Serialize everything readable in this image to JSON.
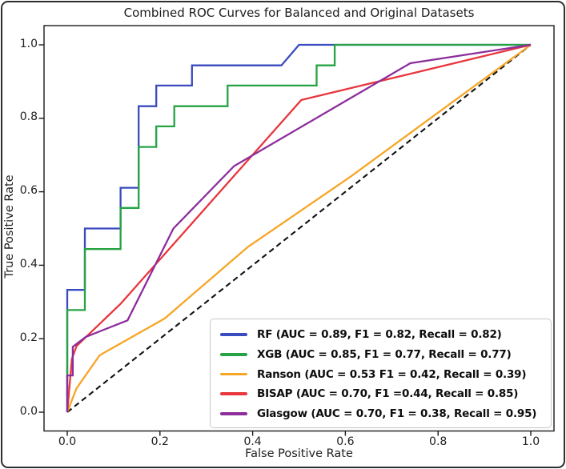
{
  "figure": {
    "title": "Combined ROC Curves for Balanced and Original Datasets",
    "xlabel": "False Positive Rate",
    "ylabel": "True Positive Rate"
  },
  "axes": {
    "x_tick_labels": [
      "0.0",
      "0.2",
      "0.4",
      "0.6",
      "0.8",
      "1.0"
    ],
    "y_tick_labels": [
      "0.0",
      "0.2",
      "0.4",
      "0.6",
      "0.8",
      "1.0"
    ],
    "x_tick_values": [
      0,
      0.2,
      0.4,
      0.6,
      0.8,
      1.0
    ],
    "y_tick_values": [
      0,
      0.2,
      0.4,
      0.6,
      0.8,
      1.0
    ]
  },
  "colors": {
    "rf_blue": "#3a4bbf",
    "xgb_green": "#26a344",
    "ranson_orange": "#f7a525",
    "bisap_red": "#e8363d",
    "glasgow_purple": "#8c2d9c",
    "chance_black": "#111111",
    "spine": "#1a1a1a",
    "legend_border": "#c7c7c7"
  },
  "legend": {
    "position": "lower right",
    "entries": [
      {
        "series": "RF",
        "label": "RF (AUC = 0.89, F1 = 0.82, Recall = 0.82)",
        "color": "#3a4bbf"
      },
      {
        "series": "XGB",
        "label": "XGB (AUC = 0.85, F1 = 0.77, Recall = 0.77)",
        "color": "#26a344"
      },
      {
        "series": "Ranson",
        "label": "Ranson (AUC = 0.53 F1 = 0.42, Recall = 0.39)",
        "color": "#f7a525"
      },
      {
        "series": "BISAP",
        "label": "BISAP (AUC = 0.70, F1 =0.44, Recall = 0.85)",
        "color": "#e8363d"
      },
      {
        "series": "Glasgow",
        "label": "Glasgow (AUC = 0.70, F1 = 0.38, Recall = 0.95)",
        "color": "#8c2d9c"
      }
    ]
  },
  "chart_data": {
    "type": "line",
    "title": "Combined ROC Curves for Balanced and Original Datasets",
    "xlabel": "False Positive Rate",
    "ylabel": "True Positive Rate",
    "xlim": [
      -0.05,
      1.05
    ],
    "ylim": [
      -0.05,
      1.05
    ],
    "grid": false,
    "legend_position": "lower right",
    "series": [
      {
        "name": "RF",
        "auc": 0.89,
        "f1": 0.82,
        "recall": 0.82,
        "color": "#3a4bbf",
        "style": "solid",
        "points": [
          [
            0,
            0
          ],
          [
            0,
            0.333
          ],
          [
            0.038,
            0.333
          ],
          [
            0.038,
            0.5
          ],
          [
            0.115,
            0.5
          ],
          [
            0.115,
            0.611
          ],
          [
            0.154,
            0.611
          ],
          [
            0.154,
            0.833
          ],
          [
            0.192,
            0.833
          ],
          [
            0.192,
            0.889
          ],
          [
            0.269,
            0.889
          ],
          [
            0.269,
            0.944
          ],
          [
            0.462,
            0.944
          ],
          [
            0.5,
            1
          ],
          [
            1,
            1
          ]
        ]
      },
      {
        "name": "XGB",
        "auc": 0.85,
        "f1": 0.77,
        "recall": 0.77,
        "color": "#26a344",
        "style": "solid",
        "points": [
          [
            0,
            0
          ],
          [
            0,
            0.278
          ],
          [
            0.038,
            0.278
          ],
          [
            0.038,
            0.444
          ],
          [
            0.115,
            0.444
          ],
          [
            0.115,
            0.556
          ],
          [
            0.154,
            0.556
          ],
          [
            0.154,
            0.722
          ],
          [
            0.192,
            0.722
          ],
          [
            0.192,
            0.778
          ],
          [
            0.231,
            0.778
          ],
          [
            0.231,
            0.833
          ],
          [
            0.346,
            0.833
          ],
          [
            0.346,
            0.889
          ],
          [
            0.538,
            0.889
          ],
          [
            0.538,
            0.944
          ],
          [
            0.577,
            0.944
          ],
          [
            0.577,
            1
          ],
          [
            1,
            1
          ]
        ]
      },
      {
        "name": "Ranson",
        "auc": 0.53,
        "f1": 0.42,
        "recall": 0.39,
        "color": "#f7a525",
        "style": "solid",
        "points": [
          [
            0,
            0
          ],
          [
            0.02,
            0.065
          ],
          [
            0.07,
            0.155
          ],
          [
            0.21,
            0.255
          ],
          [
            0.39,
            0.45
          ],
          [
            0.61,
            0.64
          ],
          [
            1,
            1
          ]
        ]
      },
      {
        "name": "BISAP",
        "auc": 0.7,
        "f1": 0.44,
        "recall": 0.85,
        "color": "#e8363d",
        "style": "solid",
        "points": [
          [
            0,
            0
          ],
          [
            0.01,
            0.145
          ],
          [
            0.02,
            0.18
          ],
          [
            0.115,
            0.295
          ],
          [
            0.505,
            0.85
          ],
          [
            1,
            1
          ]
        ]
      },
      {
        "name": "Glasgow",
        "auc": 0.7,
        "f1": 0.38,
        "recall": 0.95,
        "color": "#8c2d9c",
        "style": "solid",
        "points": [
          [
            0,
            0
          ],
          [
            0,
            0.1
          ],
          [
            0.012,
            0.1
          ],
          [
            0.012,
            0.178
          ],
          [
            0.04,
            0.205
          ],
          [
            0.13,
            0.25
          ],
          [
            0.229,
            0.5
          ],
          [
            0.36,
            0.67
          ],
          [
            0.74,
            0.95
          ],
          [
            1,
            1
          ]
        ]
      },
      {
        "name": "chance",
        "color": "#111111",
        "style": "dashed",
        "points": [
          [
            0,
            0
          ],
          [
            1,
            1
          ]
        ]
      }
    ]
  }
}
